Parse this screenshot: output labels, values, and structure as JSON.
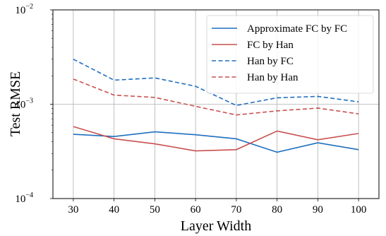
{
  "chart_data": {
    "type": "line",
    "xlabel": "Layer Width",
    "ylabel": "Test RMSE",
    "x": [
      30,
      40,
      50,
      60,
      70,
      80,
      90,
      100
    ],
    "xlim": [
      25,
      105
    ],
    "ylim": [
      0.0001,
      0.01
    ],
    "yscale": "log",
    "grid": true,
    "legend_position": "top-right",
    "x_ticks": [
      "30",
      "40",
      "50",
      "60",
      "70",
      "80",
      "90",
      "100"
    ],
    "y_ticks": [
      {
        "value": 0.0001,
        "base": "10",
        "exp": "−4"
      },
      {
        "value": 0.001,
        "base": "10",
        "exp": "−3"
      },
      {
        "value": 0.01,
        "base": "10",
        "exp": "−2"
      }
    ],
    "series": [
      {
        "name": "Approximate FC by FC",
        "color": "#1f6fbf",
        "dash": "solid",
        "values": [
          0.00048,
          0.000455,
          0.00051,
          0.000475,
          0.00043,
          0.00031,
          0.00039,
          0.00033
        ]
      },
      {
        "name": "FC by Han",
        "color": "#c9504f",
        "dash": "solid",
        "values": [
          0.00058,
          0.00043,
          0.00038,
          0.00032,
          0.00033,
          0.00052,
          0.00042,
          0.00049
        ]
      },
      {
        "name": "Han by FC",
        "color": "#1f6fbf",
        "dash": "dashed",
        "values": [
          0.003,
          0.0018,
          0.0019,
          0.00155,
          0.00097,
          0.00117,
          0.00121,
          0.00106
        ]
      },
      {
        "name": "Han by Han",
        "color": "#c9504f",
        "dash": "dashed",
        "values": [
          0.00185,
          0.00125,
          0.00118,
          0.00095,
          0.00077,
          0.00085,
          0.00091,
          0.00079
        ]
      }
    ]
  }
}
